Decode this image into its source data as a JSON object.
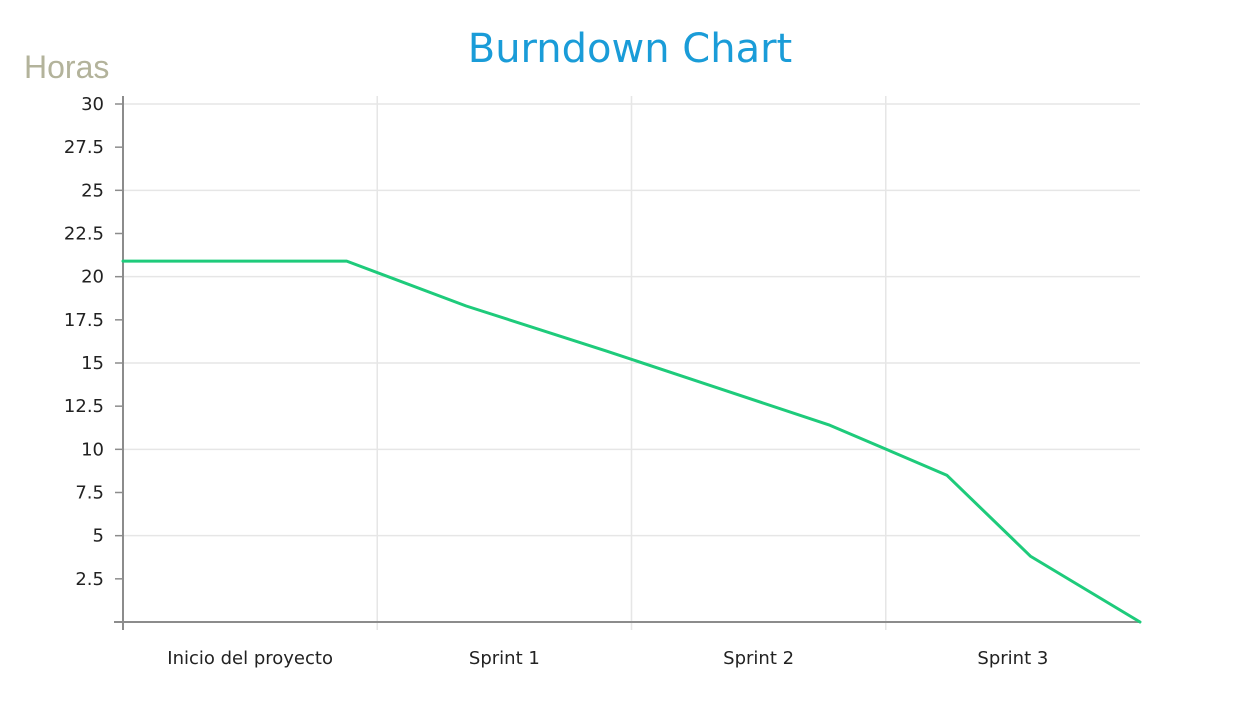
{
  "chart_data": {
    "type": "line",
    "title": "Burndown Chart",
    "ylabel": "Horas",
    "xlabel": "",
    "categories": [
      "Inicio del proyecto",
      "Sprint 1",
      "Sprint 2",
      "Sprint 3"
    ],
    "ylim": [
      0,
      30
    ],
    "yticks": [
      "2.5",
      "5",
      "7.5",
      "10",
      "12.5",
      "15",
      "17.5",
      "20",
      "22.5",
      "25",
      "27.5",
      "30"
    ],
    "grid": true,
    "x_domain": [
      0,
      4
    ],
    "series": [
      {
        "points": [
          {
            "x": 0.0,
            "y": 20.9
          },
          {
            "x": 0.88,
            "y": 20.9
          },
          {
            "x": 1.35,
            "y": 18.3
          },
          {
            "x": 1.9,
            "y": 15.7
          },
          {
            "x": 2.78,
            "y": 11.4
          },
          {
            "x": 3.24,
            "y": 8.5
          },
          {
            "x": 3.57,
            "y": 3.8
          },
          {
            "x": 4.0,
            "y": 0
          }
        ]
      }
    ],
    "colors": {
      "title": "#1a9cd8",
      "ylabel": "#b3b39b",
      "line": "#1ecb7b",
      "grid": "#e6e6e6",
      "axis": "#8c8c8c"
    }
  }
}
